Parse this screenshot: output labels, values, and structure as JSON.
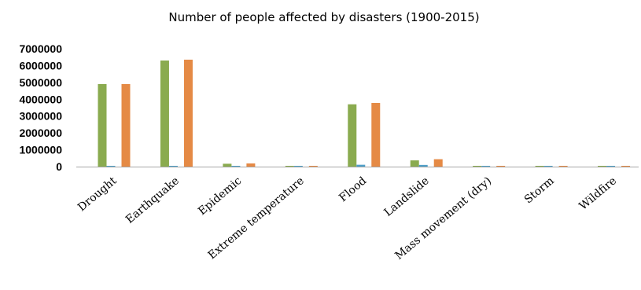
{
  "chart_data": {
    "type": "bar",
    "title": "Number of people affected by disasters (1900-2015)",
    "xlabel": "",
    "ylabel": "",
    "categories": [
      "Drought",
      "Earthquake",
      "Epidemic",
      "Extreme temperature",
      "Flood",
      "Landslide",
      "Mass movement (dry)",
      "Storm",
      "Wildfire"
    ],
    "series": [
      {
        "color": "#8aab4f",
        "values": [
          4900000,
          6300000,
          170000,
          10000,
          3700000,
          370000,
          5000,
          2000,
          5000
        ]
      },
      {
        "color": "#4f9fc8",
        "values": [
          15000,
          15000,
          10000,
          5000,
          110000,
          100000,
          3000,
          2000,
          40000
        ]
      },
      {
        "color": "#e58a45",
        "values": [
          4900000,
          6350000,
          190000,
          20000,
          3780000,
          440000,
          6000,
          3000,
          8000
        ]
      }
    ],
    "ylim": [
      0,
      7000000
    ],
    "yticks": [
      "0",
      "1000000",
      "2000000",
      "3000000",
      "4000000",
      "5000000",
      "6000000",
      "7000000"
    ],
    "yticks_values": [
      0,
      1000000,
      2000000,
      3000000,
      4000000,
      5000000,
      6000000,
      7000000
    ],
    "grid": false,
    "legend": "none"
  }
}
